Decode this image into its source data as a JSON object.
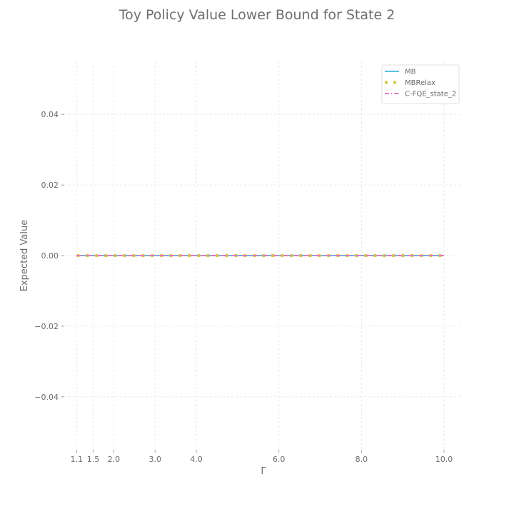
{
  "chart_data": {
    "type": "line",
    "title": "Toy Policy Value Lower Bound for State 2",
    "xlabel": "Γ",
    "ylabel": "Expected Value",
    "xlim": [
      0.8,
      10.45
    ],
    "ylim": [
      -0.055,
      0.055
    ],
    "x_ticks": [
      1.1,
      1.5,
      2.0,
      3.0,
      4.0,
      6.0,
      8.0,
      10.0
    ],
    "x_tick_labels": [
      "1.1",
      "1.5",
      "2.0",
      "3.0",
      "4.0",
      "6.0",
      "8.0",
      "10.0"
    ],
    "y_ticks": [
      -0.04,
      -0.02,
      0.0,
      0.02,
      0.04
    ],
    "y_tick_labels": [
      "−0.04",
      "−0.02",
      "0.00",
      "0.02",
      "0.04"
    ],
    "grid": true,
    "legend_position": "top-right",
    "series": [
      {
        "name": "MB",
        "color": "#5bc0de",
        "style": "solid",
        "x": [
          1.1,
          10.0
        ],
        "y": [
          0.0,
          0.0
        ]
      },
      {
        "name": "MBRelax",
        "color": "#d4c94a",
        "style": "dotted",
        "x": [
          1.1,
          10.0
        ],
        "y": [
          0.0,
          0.0
        ]
      },
      {
        "name": "C-FQE_state_2",
        "color": "#e377c2",
        "style": "dashdot",
        "x": [
          1.1,
          10.0
        ],
        "y": [
          0.0,
          0.0
        ]
      }
    ]
  }
}
